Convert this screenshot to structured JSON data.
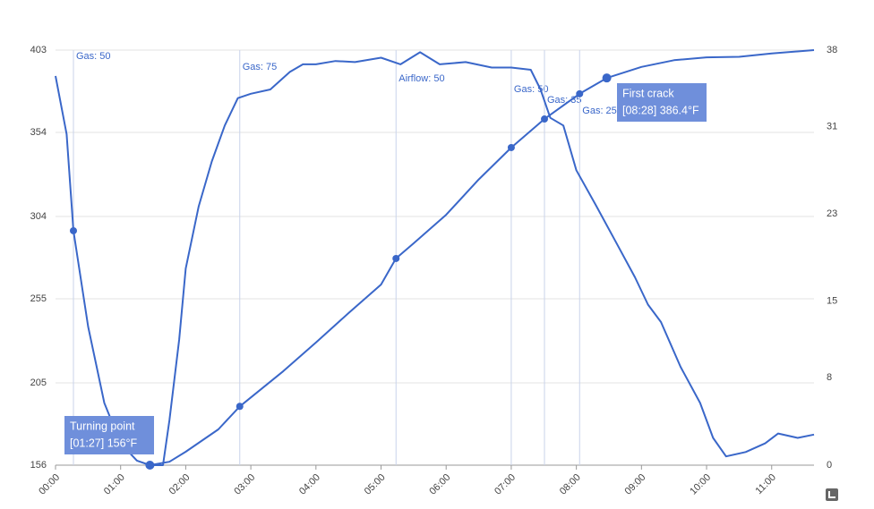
{
  "chart_data": {
    "type": "line",
    "xlim": [
      0,
      11.65
    ],
    "ylim": [
      156,
      403
    ],
    "y2lim": [
      0,
      38
    ],
    "xticks": [
      {
        "value": 0,
        "label": "00:00"
      },
      {
        "value": 1,
        "label": "01:00"
      },
      {
        "value": 2,
        "label": "02:00"
      },
      {
        "value": 3,
        "label": "03:00"
      },
      {
        "value": 4,
        "label": "04:00"
      },
      {
        "value": 5,
        "label": "05:00"
      },
      {
        "value": 6,
        "label": "06:00"
      },
      {
        "value": 7,
        "label": "07:00"
      },
      {
        "value": 8,
        "label": "08:00"
      },
      {
        "value": 9,
        "label": "09:00"
      },
      {
        "value": 10,
        "label": "10:00"
      },
      {
        "value": 11,
        "label": "11:00"
      }
    ],
    "yticks": [
      156,
      205,
      255,
      304,
      354,
      403
    ],
    "y2ticks": [
      0,
      8,
      15,
      23,
      31,
      38
    ],
    "grid": true,
    "series": [
      {
        "color": "#3a67c9",
        "x": [
          0,
          0.17,
          0.275,
          0.5,
          0.75,
          1,
          1.25,
          1.45,
          1.75,
          2,
          2.5,
          2.83,
          3.5,
          4,
          4.5,
          5,
          5.23,
          5.5,
          6,
          6.5,
          7,
          7.51,
          8.05,
          8.467,
          9,
          9.5,
          10,
          10.5,
          11,
          11.65
        ],
        "values": [
          387.6,
          353,
          295.5,
          238.5,
          193,
          169,
          158.7,
          156,
          158,
          164,
          177.3,
          191,
          212,
          229,
          246.5,
          263.5,
          279,
          288,
          305,
          326,
          345,
          362,
          377,
          386.4,
          393,
          397,
          398.7,
          399,
          401,
          403
        ]
      },
      {
        "color": "#3a67c9",
        "axis": "y2",
        "x": [
          1.5,
          1.65,
          1.75,
          1.9,
          2.0,
          2.2,
          2.4,
          2.6,
          2.8,
          3.0,
          3.3,
          3.6,
          3.8,
          4.0,
          4.3,
          4.6,
          5.0,
          5.3,
          5.6,
          5.9,
          6.3,
          6.7,
          7.0,
          7.3,
          7.45,
          7.6,
          7.8,
          8.0,
          8.3,
          8.6,
          8.9,
          9.1,
          9.3,
          9.6,
          9.9,
          10.1,
          10.3,
          10.6,
          10.9,
          11.1,
          11.4,
          11.65
        ],
        "values": [
          0,
          0,
          4.1,
          11.5,
          18,
          23.7,
          27.8,
          31.1,
          33.6,
          34,
          34.4,
          36,
          36.7,
          36.7,
          37,
          36.9,
          37.3,
          36.7,
          37.8,
          36.7,
          36.9,
          36.4,
          36.4,
          36.2,
          34.4,
          31.8,
          31.1,
          27,
          23.8,
          20.5,
          17.2,
          14.7,
          13.1,
          9,
          5.7,
          2.5,
          0.8,
          1.2,
          2,
          2.9,
          2.5,
          2.8
        ]
      }
    ],
    "events": [
      {
        "label": "Gas: 50",
        "x": 0.275,
        "value": 295.5
      },
      {
        "label": "Gas: 75",
        "x": 2.83,
        "value": 191
      },
      {
        "label": "Airflow: 50",
        "x": 5.23,
        "value": 279
      },
      {
        "label": "Gas: 50",
        "x": 7.0,
        "value": 345
      },
      {
        "label": "Gas: 35",
        "x": 7.51,
        "value": 362
      },
      {
        "label": "Gas: 25",
        "x": 8.05,
        "value": 377
      }
    ],
    "annotations": [
      {
        "title": "Turning point",
        "text": "[01:27] 156°F",
        "x": 1.45,
        "y": 156
      },
      {
        "title": "First crack",
        "text": "[08:28] 386.4°F",
        "x": 8.467,
        "y": 386.4
      }
    ]
  }
}
